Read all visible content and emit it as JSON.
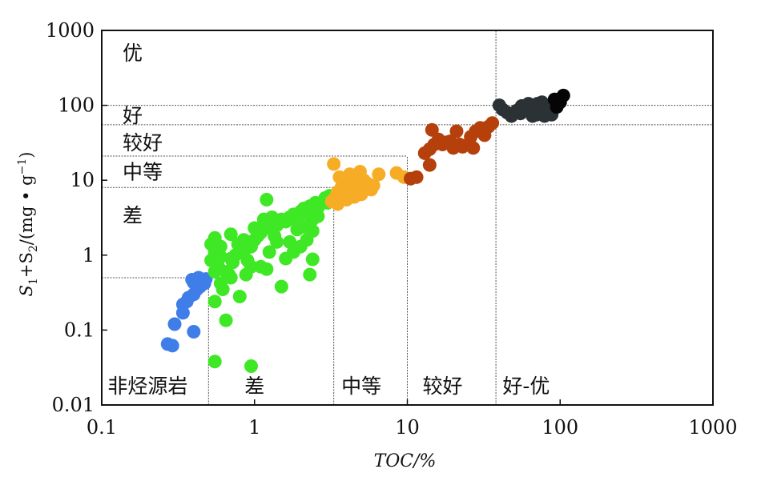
{
  "chart_data": {
    "type": "scatter",
    "x_scale": "log",
    "y_scale": "log",
    "xlim": [
      0.1,
      1000
    ],
    "ylim": [
      0.01,
      1000
    ],
    "xlabel": "TOC/%",
    "ylabel": {
      "s1": "S",
      "s1_sub": "1",
      "plus": "+S",
      "s2_sub": "2",
      "unit": "/(mg • g",
      "exp": "−1",
      "close": ")"
    },
    "x_ticks": [
      {
        "value": 0.1,
        "label": "0.1"
      },
      {
        "value": 1,
        "label": "1"
      },
      {
        "value": 10,
        "label": "10"
      },
      {
        "value": 100,
        "label": "100"
      },
      {
        "value": 1000,
        "label": "1000"
      }
    ],
    "y_ticks": [
      {
        "value": 0.01,
        "label": "0.01"
      },
      {
        "value": 0.1,
        "label": "0.1"
      },
      {
        "value": 1,
        "label": "1"
      },
      {
        "value": 10,
        "label": "10"
      },
      {
        "value": 100,
        "label": "100"
      },
      {
        "value": 1000,
        "label": "1000"
      }
    ],
    "grid": false,
    "colors": {
      "非烃源岩": "#3f7ee8",
      "差": "#3ee824",
      "中等": "#f7ac26",
      "较好": "#b5400b",
      "好-优": "#2b3235",
      "black": "#050505"
    },
    "y_classes": [
      {
        "label": "优",
        "y_pos": 500
      },
      {
        "label": "好",
        "y_pos": 74
      },
      {
        "label": "较好",
        "y_pos": 32
      },
      {
        "label": "中等",
        "y_pos": 13
      },
      {
        "label": "差",
        "y_pos": 3.4
      }
    ],
    "x_classes": [
      {
        "label": "非烃源岩",
        "x_pos": 0.2
      },
      {
        "label": "差",
        "x_pos": 1.0
      },
      {
        "label": "中等",
        "x_pos": 5.0
      },
      {
        "label": "较好",
        "x_pos": 17
      },
      {
        "label": "好-优",
        "x_pos": 60
      }
    ],
    "boundary_lines": [
      {
        "x": [
          0.1,
          0.5
        ],
        "y": [
          0.5,
          0.5
        ]
      },
      {
        "x": [
          0.5,
          0.5
        ],
        "y": [
          0.01,
          0.5
        ]
      },
      {
        "x": [
          0.1,
          3.3
        ],
        "y": [
          8,
          8
        ]
      },
      {
        "x": [
          3.3,
          3.3
        ],
        "y": [
          0.01,
          8
        ]
      },
      {
        "x": [
          0.1,
          10
        ],
        "y": [
          21,
          21
        ]
      },
      {
        "x": [
          10,
          10
        ],
        "y": [
          0.01,
          21
        ]
      },
      {
        "x": [
          0.1,
          1000
        ],
        "y": [
          55,
          55
        ]
      },
      {
        "x": [
          0.1,
          1000
        ],
        "y": [
          100,
          100
        ]
      },
      {
        "x": [
          38,
          38
        ],
        "y": [
          0.01,
          1000
        ]
      }
    ],
    "series": [
      {
        "group": "非烃源岩",
        "color": "#3f7ee8",
        "points": [
          [
            0.27,
            0.065
          ],
          [
            0.29,
            0.062
          ],
          [
            0.3,
            0.12
          ],
          [
            0.4,
            0.095
          ],
          [
            0.34,
            0.17
          ],
          [
            0.34,
            0.22
          ],
          [
            0.37,
            0.27
          ],
          [
            0.4,
            0.3
          ],
          [
            0.42,
            0.35
          ],
          [
            0.44,
            0.38
          ],
          [
            0.4,
            0.43
          ],
          [
            0.45,
            0.45
          ],
          [
            0.48,
            0.48
          ],
          [
            0.39,
            0.47
          ],
          [
            0.43,
            0.5
          ],
          [
            0.47,
            0.42
          ],
          [
            0.36,
            0.24
          ]
        ]
      },
      {
        "group": "差",
        "color": "#3ee824",
        "points": [
          [
            0.55,
            0.038
          ],
          [
            0.95,
            0.033
          ],
          [
            0.55,
            0.24
          ],
          [
            0.65,
            0.135
          ],
          [
            0.8,
            0.28
          ],
          [
            0.6,
            0.42
          ],
          [
            0.65,
            0.6
          ],
          [
            0.55,
            0.6
          ],
          [
            0.58,
            0.7
          ],
          [
            0.52,
            0.85
          ],
          [
            0.55,
            1.1
          ],
          [
            0.52,
            1.4
          ],
          [
            0.55,
            1.7
          ],
          [
            0.6,
            1.3
          ],
          [
            0.7,
            0.9
          ],
          [
            0.72,
            0.8
          ],
          [
            0.75,
            1.0
          ],
          [
            0.8,
            1.2
          ],
          [
            0.85,
            1.1
          ],
          [
            0.9,
            1.4
          ],
          [
            0.95,
            1.3
          ],
          [
            1.0,
            1.6
          ],
          [
            1.05,
            1.8
          ],
          [
            1.1,
            2.0
          ],
          [
            1.15,
            2.3
          ],
          [
            1.2,
            2.6
          ],
          [
            1.3,
            2.2
          ],
          [
            1.35,
            1.8
          ],
          [
            1.4,
            2.5
          ],
          [
            1.5,
            3.0
          ],
          [
            1.6,
            2.8
          ],
          [
            1.7,
            3.2
          ],
          [
            1.8,
            3.5
          ],
          [
            1.9,
            2.8
          ],
          [
            2.0,
            3.8
          ],
          [
            2.1,
            4.2
          ],
          [
            2.2,
            3.6
          ],
          [
            2.3,
            4.5
          ],
          [
            2.4,
            3.9
          ],
          [
            2.5,
            5.0
          ],
          [
            2.6,
            4.3
          ],
          [
            2.7,
            4.8
          ],
          [
            2.8,
            5.2
          ],
          [
            2.9,
            5.8
          ],
          [
            3.0,
            5.0
          ],
          [
            3.1,
            6.2
          ],
          [
            2.4,
            3.0
          ],
          [
            2.1,
            2.4
          ],
          [
            1.2,
            0.65
          ],
          [
            1.1,
            0.7
          ],
          [
            0.95,
            0.7
          ],
          [
            1.5,
            0.38
          ],
          [
            1.6,
            0.9
          ],
          [
            2.3,
            0.55
          ],
          [
            2.4,
            0.88
          ],
          [
            1.2,
            5.5
          ],
          [
            0.7,
            1.9
          ],
          [
            0.6,
            0.95
          ],
          [
            0.68,
            0.55
          ],
          [
            0.88,
            0.55
          ],
          [
            0.9,
            0.85
          ],
          [
            1.25,
            1.1
          ],
          [
            1.4,
            1.5
          ],
          [
            1.7,
            1.5
          ],
          [
            1.9,
            2.2
          ],
          [
            2.2,
            1.6
          ],
          [
            2.4,
            2.1
          ],
          [
            2.6,
            3.3
          ],
          [
            1.3,
            3.2
          ],
          [
            1.15,
            3.0
          ],
          [
            1.35,
            2.5
          ],
          [
            1.0,
            2.3
          ],
          [
            0.85,
            1.6
          ],
          [
            0.78,
            1.4
          ],
          [
            0.7,
            0.5
          ],
          [
            0.62,
            0.35
          ],
          [
            1.8,
            1.1
          ],
          [
            2.0,
            1.3
          ]
        ]
      },
      {
        "group": "中等",
        "color": "#f7ac26",
        "points": [
          [
            3.2,
            5.2
          ],
          [
            3.4,
            6.0
          ],
          [
            3.5,
            7.0
          ],
          [
            3.6,
            5.5
          ],
          [
            3.7,
            8.0
          ],
          [
            3.8,
            6.5
          ],
          [
            3.9,
            9.0
          ],
          [
            4.0,
            7.5
          ],
          [
            4.1,
            10.0
          ],
          [
            4.2,
            12.0
          ],
          [
            4.3,
            6.0
          ],
          [
            4.4,
            8.5
          ],
          [
            4.5,
            11.0
          ],
          [
            4.6,
            7.0
          ],
          [
            4.8,
            9.5
          ],
          [
            5.0,
            8.0
          ],
          [
            5.2,
            10.0
          ],
          [
            5.5,
            9.0
          ],
          [
            5.8,
            7.5
          ],
          [
            6.0,
            8.5
          ],
          [
            4.0,
            5.5
          ],
          [
            3.5,
            4.8
          ],
          [
            3.3,
            16.5
          ],
          [
            6.5,
            12.0
          ],
          [
            8.5,
            12.5
          ],
          [
            9.5,
            11.0
          ],
          [
            5.0,
            6.5
          ],
          [
            4.5,
            6.0
          ],
          [
            3.6,
            11.0
          ],
          [
            4.9,
            13.0
          ]
        ]
      },
      {
        "group": "较好",
        "color": "#b5400b",
        "points": [
          [
            10.5,
            10.5
          ],
          [
            11.5,
            11.0
          ],
          [
            14.0,
            16.0
          ],
          [
            13.0,
            23.0
          ],
          [
            14.0,
            26.0
          ],
          [
            15.0,
            30.0
          ],
          [
            14.5,
            47.0
          ],
          [
            16.0,
            35.0
          ],
          [
            17.0,
            30.0
          ],
          [
            18.0,
            32.0
          ],
          [
            19.0,
            33.0
          ],
          [
            20.0,
            27.0
          ],
          [
            21.0,
            45.0
          ],
          [
            23.0,
            28.0
          ],
          [
            25.0,
            30.0
          ],
          [
            26.0,
            38.0
          ],
          [
            28.0,
            45.0
          ],
          [
            30.0,
            50.0
          ],
          [
            32.0,
            40.0
          ],
          [
            34.0,
            52.0
          ],
          [
            36.0,
            58.0
          ],
          [
            29.0,
            46.0
          ],
          [
            27.0,
            27.0
          ],
          [
            22.0,
            30.0
          ]
        ]
      },
      {
        "group": "好-优",
        "color": "#2b3235",
        "points": [
          [
            40.0,
            100.0
          ],
          [
            42.0,
            88.0
          ],
          [
            45.0,
            80.0
          ],
          [
            48.0,
            72.0
          ],
          [
            52.0,
            85.0
          ],
          [
            55.0,
            78.0
          ],
          [
            58.0,
            90.0
          ],
          [
            60.0,
            95.0
          ],
          [
            62.0,
            85.0
          ],
          [
            65.0,
            100.0
          ],
          [
            68.0,
            88.0
          ],
          [
            70.0,
            75.0
          ],
          [
            72.0,
            95.0
          ],
          [
            74.0,
            85.0
          ],
          [
            76.0,
            110.0
          ],
          [
            78.0,
            90.0
          ],
          [
            80.0,
            80.0
          ],
          [
            82.0,
            100.0
          ],
          [
            85.0,
            92.0
          ],
          [
            88.0,
            75.0
          ],
          [
            66.0,
            72.0
          ],
          [
            62.0,
            105.0
          ],
          [
            56.0,
            98.0
          ],
          [
            71.0,
            105.0
          ],
          [
            79.0,
            72.0
          ]
        ]
      },
      {
        "group": "black",
        "color": "#050505",
        "points": [
          [
            95.0,
            95.0
          ],
          [
            100.0,
            110.0
          ],
          [
            105.0,
            135.0
          ],
          [
            92.0,
            120.0
          ]
        ]
      }
    ]
  }
}
